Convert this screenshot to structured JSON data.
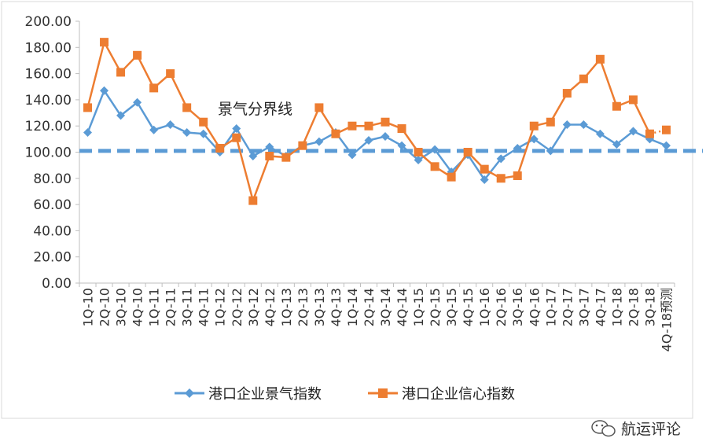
{
  "chart_data": {
    "type": "line",
    "title": "",
    "xlabel": "",
    "ylabel": "",
    "ylim": [
      0,
      200
    ],
    "yticks": [
      "0.00",
      "20.00",
      "40.00",
      "60.00",
      "80.00",
      "100.00",
      "120.00",
      "140.00",
      "160.00",
      "180.00",
      "200.00"
    ],
    "grid": false,
    "legend_position": "bottom",
    "categories": [
      "1Q-10",
      "2Q-10",
      "3Q-10",
      "4Q-10",
      "1Q-11",
      "2Q-11",
      "3Q-11",
      "4Q-11",
      "1Q-12",
      "2Q-12",
      "3Q-12",
      "4Q-12",
      "1Q-13",
      "2Q-13",
      "3Q-13",
      "4Q-13",
      "1Q-14",
      "2Q-14",
      "3Q-14",
      "4Q-14",
      "1Q-15",
      "2Q-15",
      "3Q-15",
      "4Q-15",
      "1Q-16",
      "2Q-16",
      "3Q-16",
      "4Q-16",
      "1Q-17",
      "2Q-17",
      "3Q-17",
      "4Q-17",
      "1Q-18",
      "2Q-18",
      "3Q-18",
      "4Q-18预测"
    ],
    "series": [
      {
        "name": "港口企业景气指数",
        "color": "#5B9BD5",
        "marker": "diamond",
        "values": [
          115,
          147,
          128,
          138,
          117,
          121,
          115,
          114,
          100,
          118,
          97,
          104,
          97,
          105,
          108,
          115,
          98,
          109,
          112,
          105,
          94,
          102,
          85,
          98,
          79,
          95,
          103,
          110,
          101,
          121,
          121,
          114,
          106,
          116,
          110,
          105
        ]
      },
      {
        "name": "港口企业信心指数",
        "color": "#ED7D31",
        "marker": "square",
        "values": [
          134,
          184,
          161,
          174,
          149,
          160,
          134,
          123,
          103,
          111,
          63,
          97,
          96,
          105,
          134,
          114,
          120,
          120,
          123,
          118,
          100,
          89,
          81,
          100,
          87,
          80,
          82,
          120,
          123,
          145,
          156,
          171,
          135,
          140,
          114,
          117
        ],
        "dotted_last_segment": true
      }
    ],
    "reference_line": {
      "value": 101,
      "label": "景气分界线",
      "color": "#5B9BD5",
      "style": "dashed"
    }
  },
  "watermark": {
    "text": "航运评论",
    "icon": "wechat-icon"
  }
}
